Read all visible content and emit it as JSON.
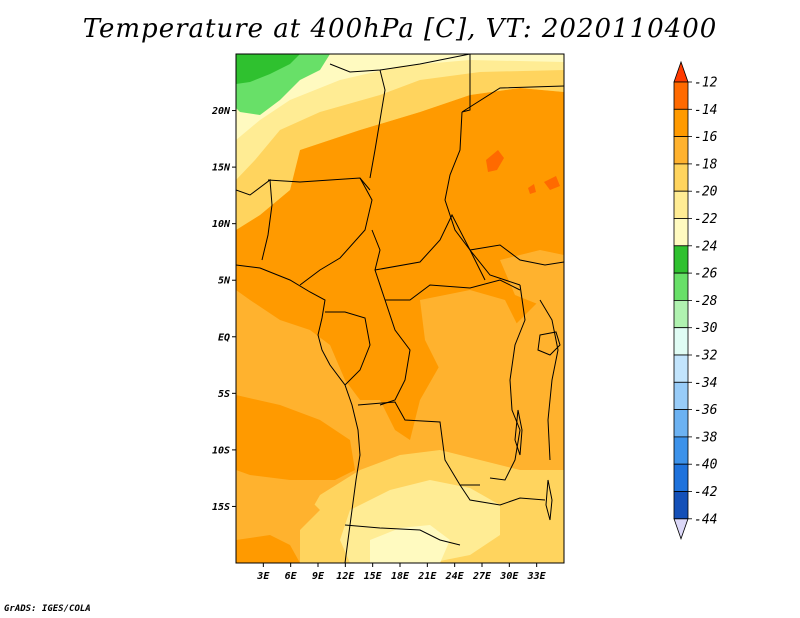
{
  "title": "Temperature at 400hPa [C], VT: 2020110400",
  "credit": "GrADS: IGES/COLA",
  "map": {
    "lon_range": [
      0,
      36
    ],
    "lat_range": [
      -20,
      25
    ],
    "lat_ticks": [
      {
        "value": 20,
        "label": "20N"
      },
      {
        "value": 15,
        "label": "15N"
      },
      {
        "value": 10,
        "label": "10N"
      },
      {
        "value": 5,
        "label": "5N"
      },
      {
        "value": 0,
        "label": "EQ"
      },
      {
        "value": -5,
        "label": "5S"
      },
      {
        "value": -10,
        "label": "10S"
      },
      {
        "value": -15,
        "label": "15S"
      }
    ],
    "lon_ticks": [
      {
        "value": 3,
        "label": "3E"
      },
      {
        "value": 6,
        "label": "6E"
      },
      {
        "value": 9,
        "label": "9E"
      },
      {
        "value": 12,
        "label": "12E"
      },
      {
        "value": 15,
        "label": "15E"
      },
      {
        "value": 18,
        "label": "18E"
      },
      {
        "value": 21,
        "label": "21E"
      },
      {
        "value": 24,
        "label": "24E"
      },
      {
        "value": 27,
        "label": "27E"
      },
      {
        "value": 30,
        "label": "30E"
      },
      {
        "value": 33,
        "label": "33E"
      }
    ],
    "background_color": "#ffa70a"
  },
  "colorbar": {
    "levels": [
      {
        "label": "-12",
        "color": "#ff6a00"
      },
      {
        "label": "-14",
        "color": "#ff9a00"
      },
      {
        "label": "-16",
        "color": "#ffb22e"
      },
      {
        "label": "-18",
        "color": "#ffd45e"
      },
      {
        "label": "-20",
        "color": "#ffec94"
      },
      {
        "label": "-22",
        "color": "#fffac0"
      },
      {
        "label": "-24",
        "color": "#2fc12f"
      },
      {
        "label": "-26",
        "color": "#68e068"
      },
      {
        "label": "-28",
        "color": "#b0f2b0"
      },
      {
        "label": "-30",
        "color": "#e0fcf4"
      },
      {
        "label": "-32",
        "color": "#c2e4fc"
      },
      {
        "label": "-34",
        "color": "#98ccf8"
      },
      {
        "label": "-36",
        "color": "#6cb2f2"
      },
      {
        "label": "-38",
        "color": "#3c92ea"
      },
      {
        "label": "-40",
        "color": "#1e72dc"
      },
      {
        "label": "-42",
        "color": "#1450b8"
      },
      {
        "label": "-44",
        "color": "#0a1880"
      }
    ],
    "top_arrow_color": "#ff3a00",
    "bottom_arrow_color": "#dcd8f8"
  },
  "colors": {
    "t12": "#ff6a00",
    "t14": "#ff9a00",
    "t16": "#ffb22e",
    "t18": "#ffd45e",
    "t20": "#ffec94",
    "t22": "#fffac0",
    "t24": "#2fc12f",
    "t26": "#68e068"
  }
}
